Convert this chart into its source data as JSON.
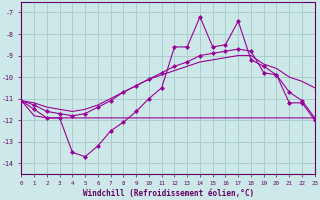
{
  "xlabel": "Windchill (Refroidissement éolien,°C)",
  "background_color": "#cce8e8",
  "grid_color": "#aacccc",
  "line_color": "#990099",
  "xlim": [
    0,
    23
  ],
  "ylim": [
    -14.5,
    -6.5
  ],
  "yticks": [
    -14,
    -13,
    -12,
    -11,
    -10,
    -9,
    -8,
    -7
  ],
  "xticks": [
    0,
    1,
    2,
    3,
    4,
    5,
    6,
    7,
    8,
    9,
    10,
    11,
    12,
    13,
    14,
    15,
    16,
    17,
    18,
    19,
    20,
    21,
    22,
    23
  ],
  "series_jagged_x": [
    0,
    1,
    2,
    3,
    4,
    5,
    6,
    7,
    8,
    9,
    10,
    11,
    12,
    13,
    14,
    15,
    16,
    17,
    18,
    19,
    20,
    21,
    22,
    23
  ],
  "series_jagged_y": [
    -11.1,
    -11.5,
    -11.9,
    -11.9,
    -13.5,
    -13.7,
    -13.2,
    -12.5,
    -12.1,
    -11.6,
    -11.0,
    -10.5,
    -8.6,
    -8.6,
    -7.2,
    -8.6,
    -8.5,
    -7.4,
    -9.2,
    -9.5,
    -9.9,
    -11.2,
    -11.2,
    -12.0
  ],
  "series_smooth_x": [
    0,
    1,
    2,
    3,
    4,
    5,
    6,
    7,
    8,
    9,
    10,
    11,
    12,
    13,
    14,
    15,
    16,
    17,
    18,
    19,
    20,
    21,
    22,
    23
  ],
  "series_smooth_y": [
    -11.1,
    -11.3,
    -11.6,
    -11.7,
    -11.8,
    -11.7,
    -11.4,
    -11.1,
    -10.7,
    -10.4,
    -10.1,
    -9.8,
    -9.5,
    -9.3,
    -9.0,
    -8.9,
    -8.8,
    -8.7,
    -8.8,
    -9.8,
    -9.9,
    -10.7,
    -11.1,
    -11.9
  ],
  "series_flat_x": [
    0,
    1,
    2,
    3,
    4,
    5,
    6,
    7,
    8,
    9,
    10,
    11,
    12,
    13,
    14,
    15,
    16,
    17,
    18,
    19,
    20,
    21,
    22,
    23
  ],
  "series_flat_y": [
    -11.1,
    -11.8,
    -11.9,
    -11.9,
    -11.9,
    -11.9,
    -11.9,
    -11.9,
    -11.9,
    -11.9,
    -11.9,
    -11.9,
    -11.9,
    -11.9,
    -11.9,
    -11.9,
    -11.9,
    -11.9,
    -11.9,
    -11.9,
    -11.9,
    -11.9,
    -11.9,
    -11.9
  ],
  "series_linear_x": [
    0,
    1,
    2,
    3,
    4,
    5,
    6,
    7,
    8,
    9,
    10,
    11,
    12,
    13,
    14,
    15,
    16,
    17,
    18,
    19,
    20,
    21,
    22,
    23
  ],
  "series_linear_y": [
    -11.1,
    -11.2,
    -11.4,
    -11.5,
    -11.6,
    -11.5,
    -11.3,
    -11.0,
    -10.7,
    -10.4,
    -10.1,
    -9.9,
    -9.7,
    -9.5,
    -9.3,
    -9.2,
    -9.1,
    -9.0,
    -9.0,
    -9.4,
    -9.6,
    -10.0,
    -10.2,
    -10.5
  ]
}
